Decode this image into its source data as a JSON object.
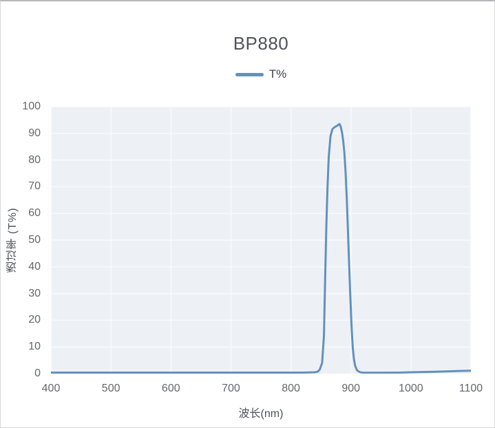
{
  "chart_data": {
    "type": "line",
    "title": "BP880",
    "xlabel": "波长(nm)",
    "ylabel": "透过率 (T%)",
    "xlim": [
      400,
      1100
    ],
    "ylim": [
      0,
      100
    ],
    "xticks": [
      400,
      500,
      600,
      700,
      800,
      900,
      1000,
      1100
    ],
    "yticks": [
      0,
      10,
      20,
      30,
      40,
      50,
      60,
      70,
      80,
      90,
      100
    ],
    "grid": true,
    "legend_position": "top",
    "plot_bg_color": "#edf1f6",
    "grid_color": "#f8fafd",
    "series": [
      {
        "name": "T%",
        "color": "#6390bd",
        "points": [
          [
            400,
            0.4
          ],
          [
            450,
            0.4
          ],
          [
            500,
            0.4
          ],
          [
            550,
            0.4
          ],
          [
            600,
            0.4
          ],
          [
            650,
            0.4
          ],
          [
            700,
            0.4
          ],
          [
            750,
            0.4
          ],
          [
            800,
            0.4
          ],
          [
            820,
            0.4
          ],
          [
            840,
            0.5
          ],
          [
            845,
            0.8
          ],
          [
            848,
            1.5
          ],
          [
            852,
            4
          ],
          [
            855,
            14
          ],
          [
            857,
            35
          ],
          [
            859,
            55
          ],
          [
            861,
            70
          ],
          [
            863,
            81
          ],
          [
            866,
            89
          ],
          [
            869,
            91.5
          ],
          [
            872,
            92.2
          ],
          [
            875,
            92.6
          ],
          [
            878,
            93
          ],
          [
            881,
            93.5
          ],
          [
            883,
            92.5
          ],
          [
            885,
            90.5
          ],
          [
            887,
            87.5
          ],
          [
            889,
            83
          ],
          [
            891,
            76
          ],
          [
            893,
            66
          ],
          [
            895,
            54
          ],
          [
            897,
            41
          ],
          [
            899,
            29
          ],
          [
            901,
            18
          ],
          [
            903,
            10
          ],
          [
            905,
            5.5
          ],
          [
            907,
            3
          ],
          [
            910,
            1.3
          ],
          [
            913,
            0.8
          ],
          [
            916,
            0.5
          ],
          [
            920,
            0.4
          ],
          [
            940,
            0.35
          ],
          [
            960,
            0.35
          ],
          [
            980,
            0.4
          ],
          [
            1000,
            0.5
          ],
          [
            1020,
            0.6
          ],
          [
            1040,
            0.7
          ],
          [
            1060,
            0.85
          ],
          [
            1080,
            1.0
          ],
          [
            1100,
            1.1
          ]
        ]
      }
    ]
  }
}
